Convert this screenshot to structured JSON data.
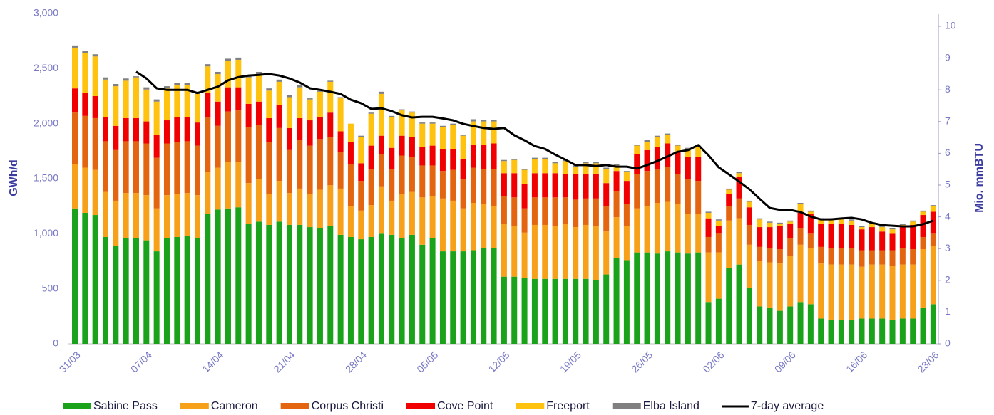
{
  "chart_data": {
    "type": "bar",
    "stacked": true,
    "y_label": "GWh/d",
    "y2_label": "Mio. mmBTU",
    "legend": "bottom",
    "grid": false,
    "categories": [
      "31/03",
      null,
      null,
      null,
      null,
      null,
      null,
      "07/04",
      null,
      null,
      null,
      null,
      null,
      null,
      "14/04",
      null,
      null,
      null,
      null,
      null,
      null,
      "21/04",
      null,
      null,
      null,
      null,
      null,
      null,
      "28/04",
      null,
      null,
      null,
      null,
      null,
      null,
      "05/05",
      null,
      null,
      null,
      null,
      null,
      null,
      "12/05",
      null,
      null,
      null,
      null,
      null,
      null,
      "19/05",
      null,
      null,
      null,
      null,
      null,
      null,
      "26/05",
      null,
      null,
      null,
      null,
      null,
      null,
      "02/06",
      null,
      null,
      null,
      null,
      null,
      null,
      "09/06",
      null,
      null,
      null,
      null,
      null,
      null,
      "16/06",
      null,
      null,
      null,
      null,
      null,
      null,
      "23/06"
    ],
    "ylim": [
      0,
      3000
    ],
    "yticks": [
      0,
      500,
      {
        "value": 1000,
        "label": "1,000"
      },
      {
        "value": 1500,
        "label": "1,500"
      },
      {
        "value": 2000,
        "label": "2,000"
      },
      {
        "value": 2500,
        "label": "2,500"
      },
      {
        "value": 3000,
        "label": "3,000"
      }
    ],
    "y2lim": [
      0,
      10
    ],
    "y2ticks": [
      0,
      1,
      2,
      3,
      4,
      5,
      6,
      7,
      8,
      9,
      10
    ],
    "series": [
      {
        "name": "Sabine Pass",
        "color": "#1aa31a",
        "values": [
          1230,
          1190,
          1170,
          970,
          890,
          960,
          960,
          940,
          840,
          960,
          970,
          980,
          960,
          1180,
          1220,
          1230,
          1240,
          1090,
          1110,
          1080,
          1110,
          1080,
          1080,
          1060,
          1050,
          1070,
          990,
          970,
          950,
          970,
          1000,
          990,
          960,
          990,
          900,
          960,
          840,
          840,
          840,
          850,
          870,
          870,
          610,
          610,
          600,
          590,
          590,
          590,
          590,
          590,
          590,
          580,
          630,
          780,
          760,
          830,
          830,
          820,
          840,
          830,
          820,
          830,
          380,
          410,
          690,
          720,
          510,
          340,
          330,
          300,
          340,
          380,
          360,
          230,
          220,
          220,
          220,
          230,
          230,
          230,
          220,
          230,
          230,
          330,
          360
        ]
      },
      {
        "name": "Cameron",
        "color": "#f7a11a",
        "values": [
          400,
          410,
          410,
          410,
          410,
          410,
          410,
          410,
          390,
          390,
          390,
          390,
          390,
          380,
          380,
          420,
          410,
          370,
          390,
          280,
          370,
          290,
          330,
          300,
          350,
          370,
          420,
          280,
          260,
          290,
          430,
          310,
          400,
          390,
          430,
          380,
          480,
          460,
          390,
          430,
          400,
          380,
          480,
          460,
          410,
          490,
          490,
          480,
          500,
          470,
          490,
          490,
          390,
          370,
          310,
          400,
          420,
          460,
          450,
          440,
          360,
          350,
          450,
          420,
          430,
          420,
          390,
          410,
          410,
          430,
          460,
          520,
          510,
          500,
          500,
          500,
          500,
          470,
          490,
          490,
          490,
          490,
          490,
          530,
          530
        ]
      },
      {
        "name": "Corpus Christi",
        "color": "#e4650f",
        "values": [
          470,
          470,
          470,
          460,
          460,
          470,
          470,
          470,
          460,
          470,
          470,
          470,
          450,
          500,
          380,
          460,
          470,
          510,
          490,
          470,
          480,
          390,
          440,
          440,
          460,
          440,
          330,
          380,
          270,
          330,
          290,
          290,
          350,
          320,
          290,
          280,
          250,
          280,
          270,
          320,
          320,
          340,
          250,
          260,
          220,
          250,
          250,
          260,
          240,
          250,
          240,
          250,
          230,
          240,
          200,
          310,
          320,
          310,
          320,
          270,
          320,
          300,
          140,
          170,
          130,
          180,
          180,
          130,
          130,
          130,
          160,
          150,
          130,
          150,
          150,
          150,
          150,
          150,
          130,
          130,
          140,
          150,
          140,
          110,
          110
        ]
      },
      {
        "name": "Cove Point",
        "color": "#f00000",
        "values": [
          220,
          210,
          200,
          220,
          220,
          210,
          210,
          200,
          210,
          210,
          230,
          220,
          210,
          220,
          220,
          220,
          210,
          210,
          210,
          220,
          210,
          200,
          200,
          230,
          200,
          220,
          190,
          200,
          160,
          210,
          170,
          190,
          180,
          180,
          170,
          180,
          200,
          190,
          180,
          210,
          220,
          230,
          210,
          220,
          220,
          220,
          220,
          220,
          210,
          230,
          220,
          220,
          210,
          180,
          210,
          180,
          190,
          200,
          210,
          200,
          200,
          220,
          170,
          70,
          110,
          200,
          160,
          180,
          190,
          210,
          130,
          140,
          180,
          210,
          220,
          220,
          210,
          190,
          210,
          170,
          150,
          190,
          220,
          200,
          200
        ]
      },
      {
        "name": "Freeport",
        "color": "#ffc20e",
        "values": [
          370,
          360,
          360,
          340,
          360,
          340,
          370,
          290,
          300,
          290,
          290,
          290,
          260,
          240,
          250,
          240,
          250,
          240,
          250,
          250,
          210,
          280,
          280,
          190,
          230,
          280,
          300,
          170,
          240,
          290,
          380,
          280,
          230,
          220,
          210,
          200,
          200,
          220,
          210,
          210,
          210,
          200,
          110,
          120,
          130,
          130,
          130,
          90,
          120,
          70,
          100,
          100,
          130,
          50,
          80,
          80,
          70,
          90,
          80,
          60,
          70,
          90,
          50,
          50,
          40,
          30,
          50,
          70,
          40,
          20,
          20,
          80,
          20,
          40,
          40,
          40,
          40,
          20,
          30,
          40,
          40,
          20,
          30,
          30,
          50
        ]
      },
      {
        "name": "Elba Island",
        "color": "#808080",
        "values": [
          20,
          20,
          20,
          20,
          20,
          20,
          10,
          20,
          20,
          20,
          20,
          20,
          20,
          20,
          20,
          20,
          20,
          20,
          20,
          20,
          20,
          20,
          20,
          10,
          10,
          10,
          10,
          0,
          10,
          10,
          20,
          10,
          10,
          10,
          10,
          10,
          10,
          10,
          10,
          20,
          10,
          10,
          10,
          10,
          10,
          10,
          10,
          10,
          10,
          10,
          10,
          10,
          10,
          10,
          10,
          10,
          20,
          10,
          10,
          10,
          10,
          10,
          10,
          10,
          10,
          10,
          10,
          10,
          10,
          10,
          10,
          10,
          10,
          10,
          10,
          10,
          10,
          10,
          10,
          10,
          10,
          10,
          10,
          10,
          10
        ]
      },
      {
        "name": "7-day average",
        "color": "#000000",
        "type": "line",
        "axis": "y2",
        "values": [
          null,
          null,
          null,
          null,
          null,
          null,
          8.57,
          8.36,
          8.05,
          8,
          8,
          8,
          7.9,
          8,
          8.1,
          8.3,
          8.4,
          8.45,
          8.47,
          8.5,
          8.45,
          8.36,
          8.23,
          8.05,
          8,
          7.94,
          7.87,
          7.69,
          7.58,
          7.4,
          7.42,
          7.33,
          7.2,
          7.13,
          7.15,
          7.15,
          7.1,
          7.04,
          6.93,
          6.86,
          6.8,
          6.77,
          6.8,
          6.57,
          6.41,
          6.23,
          6.14,
          5.96,
          5.8,
          5.63,
          5.63,
          5.6,
          5.63,
          5.58,
          5.58,
          5.52,
          5.63,
          5.76,
          5.9,
          6.05,
          6.1,
          6.26,
          5.94,
          5.56,
          5.34,
          5.11,
          4.87,
          4.57,
          4.28,
          4.22,
          4.22,
          4.15,
          4.01,
          3.92,
          3.92,
          3.95,
          3.97,
          3.92,
          3.81,
          3.74,
          3.72,
          3.7,
          3.7,
          3.77,
          3.88
        ]
      }
    ]
  }
}
